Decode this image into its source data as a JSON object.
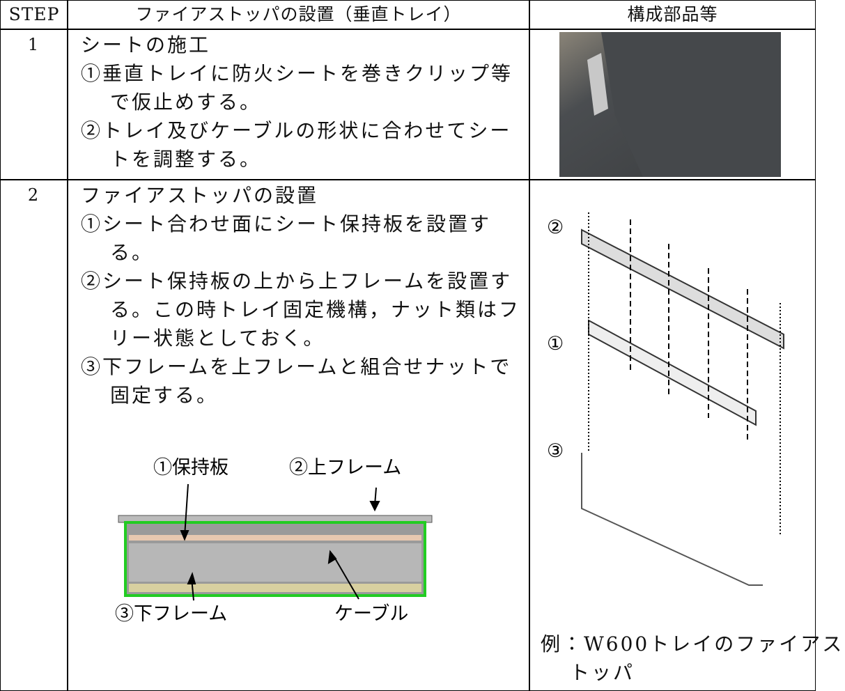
{
  "table": {
    "header": [
      "STEP",
      "ファイアストッパの設置（垂直トレイ）",
      "構成部品等"
    ],
    "rows": [
      {
        "step": "1",
        "heading": "シートの施工",
        "items": [
          "①垂直トレイに防火シートを巻きクリップ等で仮止めする。",
          "②トレイ及びケーブルの形状に合わせてシートを調整する。"
        ]
      },
      {
        "step": "2",
        "heading": "ファイアストッパの設置",
        "items": [
          "①シート合わせ面にシート保持板を設置する。",
          "②シート保持板の上から上フレームを設置する。この時トレイ固定機構，ナット類はフリー状態としておく。",
          "③下フレームを上フレームと組合せナットで固定する。"
        ],
        "diagram_labels": [
          "①保持板",
          "②上フレーム",
          "③下フレーム",
          "ケーブル"
        ],
        "figure_labels": [
          "②",
          "①",
          "③"
        ],
        "caption": "例：W600トレイのファイアストッパ"
      }
    ]
  }
}
